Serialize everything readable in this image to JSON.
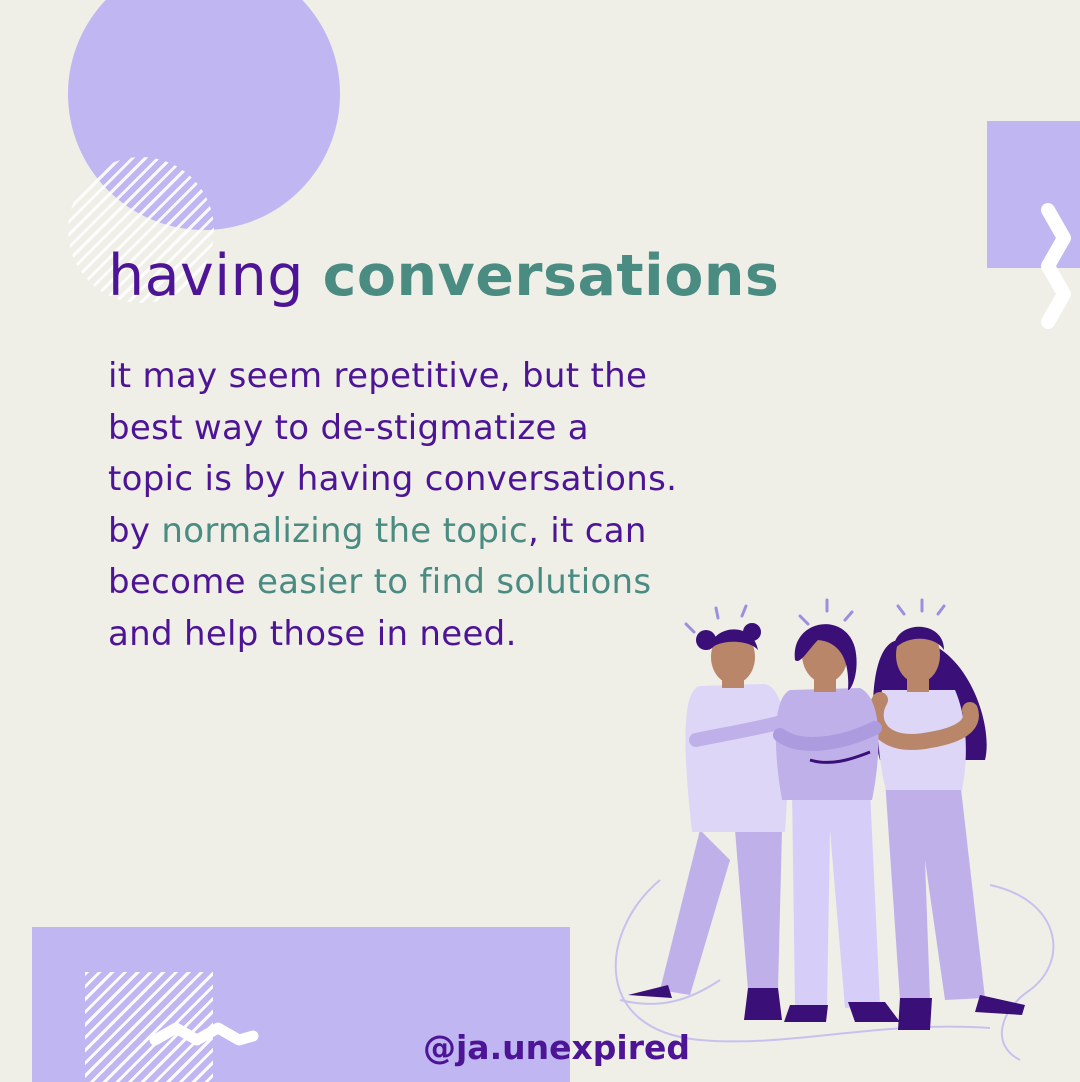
{
  "headline": {
    "word_1": "having",
    "word_2": "conversations"
  },
  "body": {
    "line_1": "it may seem repetitive, but the",
    "line_2": "best way to de-stigmatize a",
    "line_3": "topic is by having conversations.",
    "line_4_pre": "by ",
    "line_4_highlight": "normalizing the topic",
    "line_4_post": ", it can",
    "line_5_pre": "become ",
    "line_5_highlight": "easier to find solutions",
    "line_6": "and help those in need."
  },
  "handle": "@ja.unexpired",
  "colors": {
    "background": "#efefe8",
    "accent_lavender": "#c0b6f1",
    "text_purple": "#4d1596",
    "text_teal": "#4a8b82"
  },
  "illustration": "three-women-standing-arms-crossed"
}
